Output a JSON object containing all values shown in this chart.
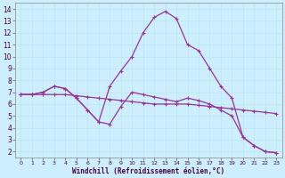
{
  "xlabel": "Windchill (Refroidissement éolien,°C)",
  "bg_color": "#cceeff",
  "line_color": "#993399",
  "grid_color": "#aadddd",
  "xlim": [
    -0.5,
    23.5
  ],
  "ylim": [
    1.5,
    14.5
  ],
  "xticks": [
    0,
    1,
    2,
    3,
    4,
    5,
    6,
    7,
    8,
    9,
    10,
    11,
    12,
    13,
    14,
    15,
    16,
    17,
    18,
    19,
    20,
    21,
    22,
    23
  ],
  "yticks": [
    2,
    3,
    4,
    5,
    6,
    7,
    8,
    9,
    10,
    11,
    12,
    13,
    14
  ],
  "line1_x": [
    0,
    1,
    2,
    3,
    4,
    5,
    6,
    7,
    8,
    9,
    10,
    11,
    12,
    13,
    14,
    15,
    16,
    17,
    18,
    19,
    20,
    21,
    22,
    23
  ],
  "line1_y": [
    6.8,
    6.8,
    6.8,
    6.8,
    6.8,
    6.7,
    6.6,
    6.5,
    6.4,
    6.3,
    6.2,
    6.1,
    6.0,
    6.0,
    6.0,
    6.0,
    5.9,
    5.8,
    5.7,
    5.6,
    5.5,
    5.4,
    5.3,
    5.2
  ],
  "line2_x": [
    0,
    1,
    2,
    3,
    4,
    5,
    6,
    7,
    8,
    9,
    10,
    11,
    12,
    13,
    14,
    15,
    16,
    17,
    18,
    19,
    20,
    21,
    22,
    23
  ],
  "line2_y": [
    6.8,
    6.8,
    7.0,
    7.5,
    7.3,
    6.5,
    5.5,
    4.5,
    4.3,
    5.8,
    7.0,
    6.8,
    6.6,
    6.4,
    6.2,
    6.5,
    6.3,
    6.0,
    5.5,
    5.0,
    3.2,
    2.5,
    2.0,
    1.9
  ],
  "line3_x": [
    0,
    1,
    2,
    3,
    4,
    5,
    6,
    7,
    8,
    9,
    10,
    11,
    12,
    13,
    14,
    15,
    16,
    17,
    18,
    19,
    20,
    21,
    22,
    23
  ],
  "line3_y": [
    6.8,
    6.8,
    7.0,
    7.5,
    7.3,
    6.5,
    5.5,
    4.5,
    7.5,
    8.8,
    10.0,
    12.0,
    13.3,
    13.8,
    13.2,
    11.0,
    10.5,
    9.0,
    7.5,
    6.5,
    3.2,
    2.5,
    2.0,
    1.9
  ]
}
